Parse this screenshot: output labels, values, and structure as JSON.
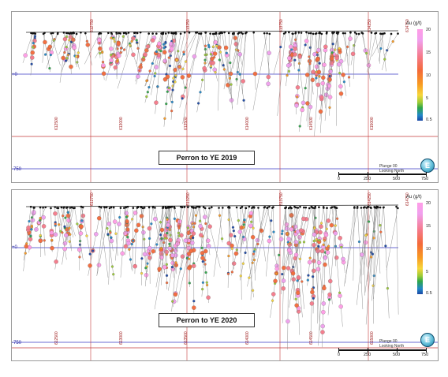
{
  "panels": [
    {
      "caption": "Perron to YE 2019",
      "plunge_line1": "Plunge 00",
      "plunge_line2": "Looking North",
      "level_top": "+0",
      "level_bottom": "-750",
      "eastings_bottom": [
        "612500",
        "613000",
        "613500",
        "614000",
        "614500",
        "615000"
      ],
      "eastings_top": [
        "612750",
        "613250",
        "613750",
        "614250",
        "614750"
      ]
    },
    {
      "caption": "Perron to YE 2020",
      "plunge_line1": "Plunge 00",
      "plunge_line2": "Looking North",
      "level_top": "+0",
      "level_bottom": "-750",
      "eastings_bottom": [
        "612500",
        "613000",
        "613500",
        "614000",
        "614500",
        "615000"
      ],
      "eastings_top": [
        "612750",
        "613250",
        "613750",
        "614250",
        "614750"
      ]
    }
  ],
  "legend": {
    "title": "Au (g/t)",
    "ticks": [
      "20",
      "15",
      "10",
      "5",
      "0.5"
    ]
  },
  "scale": {
    "labels": [
      "0",
      "250",
      "500",
      "750"
    ]
  },
  "compass": {
    "glyph": "E",
    "icon": "compass-icon"
  },
  "colors": {
    "grid_red": "#c43a3a",
    "grid_blue": "#3a3ac4",
    "trace": "#8a8a8a"
  }
}
